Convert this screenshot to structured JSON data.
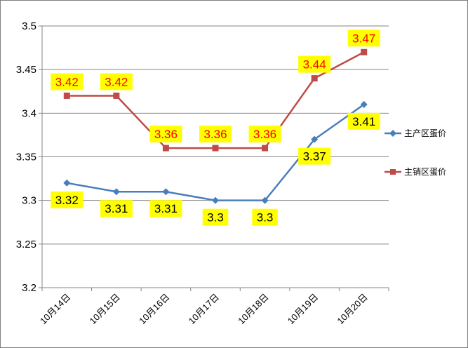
{
  "chart_data": {
    "type": "line",
    "title": "",
    "xlabel": "",
    "ylabel": "",
    "categories": [
      "10月14日",
      "10月15日",
      "10月16日",
      "10月17日",
      "10月18日",
      "10月19日",
      "10月20日"
    ],
    "ylim": [
      3.2,
      3.5
    ],
    "yticks": [
      "3.2",
      "3.25",
      "3.3",
      "3.35",
      "3.4",
      "3.45",
      "3.5"
    ],
    "grid": true,
    "legend_position": "right",
    "series": [
      {
        "name": "主产区蛋价",
        "values": [
          3.32,
          3.31,
          3.31,
          3.3,
          3.3,
          3.37,
          3.41
        ],
        "labels": [
          "3.32",
          "3.31",
          "3.31",
          "3.3",
          "3.3",
          "3.37",
          "3.41"
        ],
        "color": "#4a7ebb",
        "marker": "diamond",
        "label_color": "#000000",
        "label_bg": "#ffff00",
        "label_position": "below"
      },
      {
        "name": "主销区蛋价",
        "values": [
          3.42,
          3.42,
          3.36,
          3.36,
          3.36,
          3.44,
          3.47
        ],
        "labels": [
          "3.42",
          "3.42",
          "3.36",
          "3.36",
          "3.36",
          "3.44",
          "3.47"
        ],
        "color": "#be4b48",
        "marker": "square",
        "label_color": "#ff0000",
        "label_bg": "#ffff00",
        "label_position": "above"
      }
    ]
  }
}
